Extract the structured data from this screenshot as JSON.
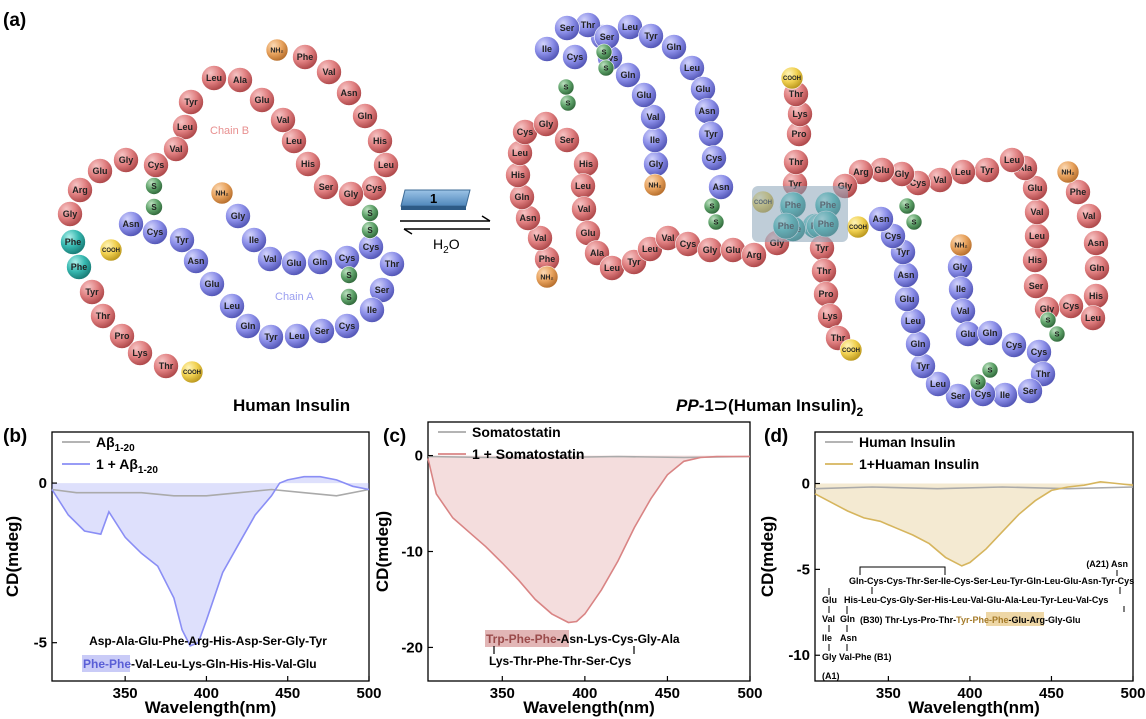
{
  "panels": {
    "a": "(a)",
    "b": "(b)",
    "c": "(c)",
    "d": "(d)"
  },
  "panel_a": {
    "left_title": "Human Insulin",
    "right_title_prefix": "PP",
    "right_title_rest": "-1⊃(Human Insulin)",
    "right_title_sub": "2",
    "chain_b_label": "Chain B",
    "chain_a_label": "Chain A",
    "reagent_label": "1",
    "reverse_label": "H",
    "reverse_sub": "2",
    "reverse_tail": "O",
    "chain_b_sequence": [
      "Phe",
      "Val",
      "Asn",
      "Gln",
      "His",
      "Leu",
      "Cys",
      "Gly",
      "Ser",
      "His",
      "Leu",
      "Val",
      "Glu",
      "Ala",
      "Leu",
      "Tyr",
      "Leu",
      "Val",
      "Cys",
      "Gly",
      "Glu",
      "Arg",
      "Gly",
      "Phe",
      "Phe",
      "Tyr",
      "Thr",
      "Pro",
      "Lys",
      "Thr"
    ],
    "chain_a_sequence": [
      "Gly",
      "Ile",
      "Val",
      "Glu",
      "Gln",
      "Cys",
      "Cys",
      "Thr",
      "Ser",
      "Ile",
      "Cys",
      "Ser",
      "Leu",
      "Tyr",
      "Gln",
      "Leu",
      "Glu",
      "Asn",
      "Tyr",
      "Cys",
      "Asn"
    ],
    "terminal_nh2": "NH₂",
    "terminal_cooh": "COOH",
    "disulfide": "S",
    "left_b_visual": [
      "Phe",
      "Val",
      "Asn",
      "Gln",
      "His",
      "Leu",
      "Cys",
      "Gly",
      "Ser",
      "His",
      "Leu",
      "Val",
      "Glu",
      "Ala",
      "Leu",
      "Tyr",
      "Leu",
      "Val",
      "Cys",
      "Gly",
      "Glu",
      "Arg",
      "Gly",
      "Phe",
      "Phe",
      "Tyr",
      "Thr",
      "Pro",
      "Lys",
      "Thr"
    ],
    "left_a_visual": [
      "Gly",
      "Ile",
      "Val",
      "Glu",
      "Gln",
      "Cys",
      "Cys",
      "Thr",
      "Ser",
      "Ile",
      "Cys",
      "Ser",
      "Leu",
      "Tyr",
      "Gln",
      "Leu",
      "Glu",
      "Asn",
      "Tyr",
      "Cys",
      "Asn"
    ],
    "right1_b": [
      "Phe",
      "Val",
      "Asn",
      "Gln",
      "His",
      "Leu",
      "Cys",
      "Gly",
      "Ser",
      "His",
      "Leu",
      "Val",
      "Glu",
      "Ala",
      "Leu",
      "Tyr",
      "Leu",
      "Val",
      "Cys",
      "Gly",
      "Glu",
      "Arg",
      "Gly",
      "Phe",
      "Phe",
      "Tyr",
      "Thr",
      "Pro",
      "Lys",
      "Thr"
    ],
    "right1_a": [
      "Gly",
      "Ile",
      "Val",
      "Glu",
      "Gln",
      "Cys",
      "Cys",
      "Thr",
      "Ser",
      "Ile",
      "Cys",
      "Ser",
      "Leu",
      "Tyr",
      "Gln",
      "Leu",
      "Glu",
      "Asn",
      "Tyr",
      "Cys",
      "Asn"
    ],
    "right2_b": [
      "Phe",
      "Val",
      "Asn",
      "Gln",
      "His",
      "Leu",
      "Cys",
      "Gly",
      "Ser",
      "His",
      "Leu",
      "Val",
      "Glu",
      "Ala",
      "Leu",
      "Tyr",
      "Leu",
      "Val",
      "Cys",
      "Gly",
      "Glu",
      "Arg",
      "Gly",
      "Phe",
      "Phe",
      "Tyr",
      "Thr",
      "Pro",
      "Lys",
      "Thr"
    ],
    "right2_a": [
      "Gly",
      "Ile",
      "Val",
      "Glu",
      "Gln",
      "Cys",
      "Cys",
      "Thr",
      "Ser",
      "Ile",
      "Cys",
      "Ser",
      "Leu",
      "Tyr",
      "Gln",
      "Leu",
      "Glu",
      "Asn",
      "Tyr",
      "Cys",
      "Asn"
    ]
  },
  "chart_data": [
    {
      "type": "line",
      "panel": "(b)",
      "xlabel": "Wavelength(nm)",
      "ylabel": "CD(mdeg)",
      "xlim": [
        305,
        500
      ],
      "ylim": [
        -6.2,
        1.6
      ],
      "xticks": [
        350,
        400,
        450,
        500
      ],
      "yticks": [
        0,
        -5
      ],
      "legend": [
        "Aβ",
        "1 + Aβ"
      ],
      "legend_sub": "1-20",
      "series": [
        {
          "name": "Aβ1-20",
          "color": "#aaaaaa",
          "x": [
            305,
            320,
            340,
            360,
            380,
            400,
            420,
            440,
            460,
            480,
            500
          ],
          "y": [
            -0.2,
            -0.3,
            -0.3,
            -0.3,
            -0.4,
            -0.4,
            -0.3,
            -0.2,
            -0.3,
            -0.4,
            -0.2
          ]
        },
        {
          "name": "1 + Aβ1-20",
          "color": "#8a8ef5",
          "x": [
            305,
            315,
            325,
            335,
            340,
            350,
            360,
            370,
            380,
            385,
            390,
            395,
            400,
            410,
            420,
            430,
            440,
            445,
            450,
            460,
            470,
            480,
            490,
            500
          ],
          "y": [
            -0.2,
            -1.0,
            -1.5,
            -1.6,
            -0.9,
            -1.7,
            -2.2,
            -2.6,
            -3.6,
            -4.6,
            -5.1,
            -5.0,
            -4.3,
            -2.8,
            -1.9,
            -1.0,
            -0.4,
            0.0,
            0.1,
            0.2,
            0.2,
            0.1,
            -0.1,
            -0.2
          ]
        }
      ],
      "annotation_line1": "Asp-Ala-Glu-Phe-Arg-His-Asp-Ser-Gly-Tyr",
      "annotation_line2_hl": "Phe-Phe",
      "annotation_line2_rest": "-Val-Leu-Lys-Gln-His-His-Val-Glu"
    },
    {
      "type": "line",
      "panel": "(c)",
      "xlabel": "Wavelength(nm)",
      "ylabel": "CD(mdeg)",
      "xlim": [
        305,
        500
      ],
      "ylim": [
        -23.5,
        3.5
      ],
      "xticks": [
        350,
        400,
        450,
        500
      ],
      "yticks": [
        0,
        -10,
        -20
      ],
      "legend": [
        "Somatostatin",
        "1 + Somatostatin"
      ],
      "series": [
        {
          "name": "Somatostatin",
          "color": "#aaaaaa",
          "x": [
            305,
            340,
            380,
            420,
            460,
            500
          ],
          "y": [
            -0.1,
            -0.2,
            -0.2,
            -0.1,
            -0.2,
            -0.1
          ]
        },
        {
          "name": "1 + Somatostatin",
          "color": "#d98484",
          "x": [
            305,
            310,
            320,
            330,
            340,
            350,
            360,
            370,
            380,
            390,
            395,
            400,
            410,
            420,
            430,
            440,
            450,
            460,
            470,
            480,
            500
          ],
          "y": [
            -0.3,
            -4.0,
            -6.5,
            -8.0,
            -9.5,
            -11.2,
            -13.0,
            -15.0,
            -16.5,
            -17.4,
            -17.3,
            -16.5,
            -14.0,
            -11.0,
            -7.5,
            -4.5,
            -2.0,
            -0.6,
            -0.2,
            -0.1,
            -0.1
          ]
        }
      ],
      "annotation_line1_hl": "Trp-Phe-Phe",
      "annotation_line1_rest": "-Asn-Lys-Cys-Gly-Ala",
      "annotation_line2": "Lys-Thr-Phe-Thr-Ser-Cys"
    },
    {
      "type": "line",
      "panel": "(d)",
      "xlabel": "Wavelength(nm)",
      "ylabel": "CD(mdeg)",
      "xlim": [
        305,
        500
      ],
      "ylim": [
        -11.5,
        3.0
      ],
      "xticks": [
        350,
        400,
        450,
        500
      ],
      "yticks": [
        0,
        -5,
        -10
      ],
      "legend": [
        "Human Insulin",
        "1+Huaman Insulin"
      ],
      "series": [
        {
          "name": "Human Insulin",
          "color": "#aaaaaa",
          "x": [
            305,
            340,
            380,
            420,
            460,
            500
          ],
          "y": [
            -0.3,
            -0.2,
            -0.3,
            -0.2,
            -0.3,
            -0.2
          ]
        },
        {
          "name": "1+Huaman Insulin",
          "color": "#d6b55d",
          "x": [
            305,
            315,
            325,
            335,
            345,
            355,
            365,
            375,
            385,
            395,
            400,
            410,
            420,
            430,
            440,
            450,
            460,
            470,
            480,
            490,
            500
          ],
          "y": [
            -0.6,
            -1.1,
            -1.6,
            -2.0,
            -2.2,
            -2.6,
            -3.0,
            -3.5,
            -4.3,
            -4.8,
            -4.6,
            -3.8,
            -2.8,
            -1.8,
            -1.0,
            -0.4,
            -0.2,
            -0.1,
            0.1,
            0.0,
            -0.1
          ]
        }
      ],
      "seq_a_label": "(A21) Asn",
      "seq_a_main": "Gln-Cys-Cys-Thr-Ser-Ile-Cys-Ser-Leu-Tyr-Gln-Leu-Glu-Asn-Tyr-Cys",
      "seq_b_main": "His-Leu-Cys-Gly-Ser-His-Leu-Val-Glu-Ala-Leu-Tyr-Leu-Val-Cys",
      "seq_b30_prefix": "(B30) Thr-Lys-Pro-Thr-",
      "seq_b30_hl": "Tyr-Phe-Phe",
      "seq_b30_rest": "-Glu-Arg-Gly-Glu",
      "seq_col1": [
        "Glu",
        "Val",
        "Ile",
        "Gly",
        "(A1)"
      ],
      "seq_col2": [
        "Gln",
        "Asn"
      ],
      "seq_b1": "Val-Phe (B1)"
    }
  ],
  "colors": {
    "chain_b": "#e07f80",
    "chain_a": "#8b8ee8",
    "disulfide": "#5fa36a",
    "phe_highlight": "#36b8b0",
    "nh2": "#e8a35e",
    "cooh": "#f0d050"
  }
}
